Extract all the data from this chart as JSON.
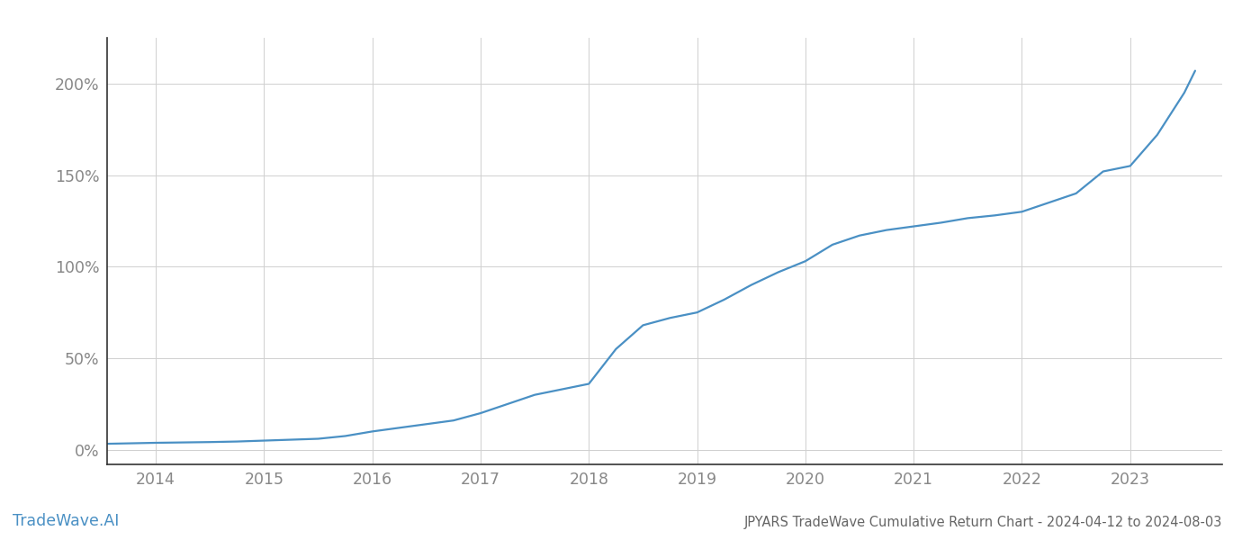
{
  "title": "JPYARS TradeWave Cumulative Return Chart - 2024-04-12 to 2024-08-03",
  "watermark": "TradeWave.AI",
  "line_color": "#4a90c4",
  "background_color": "#ffffff",
  "grid_color": "#d0d0d0",
  "x_years": [
    2014,
    2015,
    2016,
    2017,
    2018,
    2019,
    2020,
    2021,
    2022,
    2023
  ],
  "x_data": [
    2013.27,
    2013.5,
    2013.75,
    2014.0,
    2014.25,
    2014.5,
    2014.75,
    2015.0,
    2015.25,
    2015.5,
    2015.75,
    2016.0,
    2016.25,
    2016.5,
    2016.75,
    2017.0,
    2017.25,
    2017.5,
    2017.75,
    2018.0,
    2018.25,
    2018.5,
    2018.75,
    2019.0,
    2019.25,
    2019.5,
    2019.75,
    2020.0,
    2020.25,
    2020.5,
    2020.75,
    2021.0,
    2021.25,
    2021.5,
    2021.75,
    2022.0,
    2022.25,
    2022.5,
    2022.75,
    2023.0,
    2023.25,
    2023.5,
    2023.6
  ],
  "y_data": [
    3.0,
    3.2,
    3.5,
    3.8,
    4.0,
    4.2,
    4.5,
    5.0,
    5.5,
    6.0,
    7.5,
    10.0,
    12.0,
    14.0,
    16.0,
    20.0,
    25.0,
    30.0,
    33.0,
    36.0,
    55.0,
    68.0,
    72.0,
    75.0,
    82.0,
    90.0,
    97.0,
    103.0,
    112.0,
    117.0,
    120.0,
    122.0,
    124.0,
    126.5,
    128.0,
    130.0,
    135.0,
    140.0,
    152.0,
    155.0,
    172.0,
    195.0,
    207.0
  ],
  "ylim": [
    -8,
    225
  ],
  "yticks": [
    0,
    50,
    100,
    150,
    200
  ],
  "ytick_labels": [
    "0%",
    "50%",
    "100%",
    "150%",
    "200%"
  ],
  "xlim": [
    2013.55,
    2023.85
  ],
  "title_fontsize": 10.5,
  "tick_fontsize": 12.5,
  "watermark_fontsize": 12.5,
  "title_color": "#666666",
  "tick_color": "#888888",
  "spine_color": "#333333",
  "axis_line_color": "#999999",
  "line_width": 1.6
}
